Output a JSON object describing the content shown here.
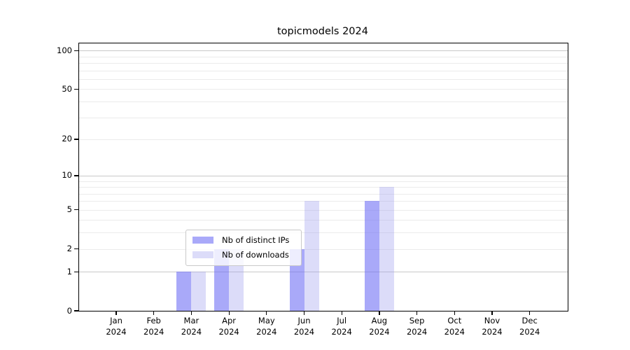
{
  "title": "topicmodels 2024",
  "chart_data": {
    "type": "bar",
    "title": "topicmodels 2024",
    "categories": [
      "Jan",
      "Feb",
      "Mar",
      "Apr",
      "May",
      "Jun",
      "Jul",
      "Aug",
      "Sep",
      "Oct",
      "Nov",
      "Dec"
    ],
    "year_label": "2024",
    "series": [
      {
        "name": "Nb of distinct IPs",
        "color": "rgba(112,112,245,0.6)",
        "values": [
          0,
          0,
          1,
          2,
          0,
          2,
          0,
          6,
          0,
          0,
          0,
          0
        ]
      },
      {
        "name": "Nb of downloads",
        "color": "rgba(155,155,238,0.35)",
        "values": [
          0,
          0,
          1,
          2,
          0,
          6,
          0,
          8,
          0,
          0,
          0,
          0
        ]
      }
    ],
    "xlabel": "",
    "ylabel": "",
    "yscale": "log1p",
    "ylim": [
      0,
      113
    ],
    "ytick_values": [
      0,
      1,
      2,
      5,
      10,
      20,
      50,
      100
    ],
    "ytick_labels": [
      "0",
      "1",
      "2",
      "5",
      "10",
      "20",
      "50",
      "100"
    ],
    "major_gridlines": [
      1,
      10,
      100
    ],
    "minor_gridlines": [
      2,
      3,
      4,
      5,
      6,
      7,
      8,
      9,
      20,
      30,
      40,
      50,
      60,
      70,
      80,
      90
    ],
    "grid": true,
    "legend_position": "lower center",
    "colors": {
      "spine": "#000000",
      "major_grid": "#c8c8c8",
      "minor_grid": "#ebebeb",
      "background": "#ffffff"
    }
  }
}
